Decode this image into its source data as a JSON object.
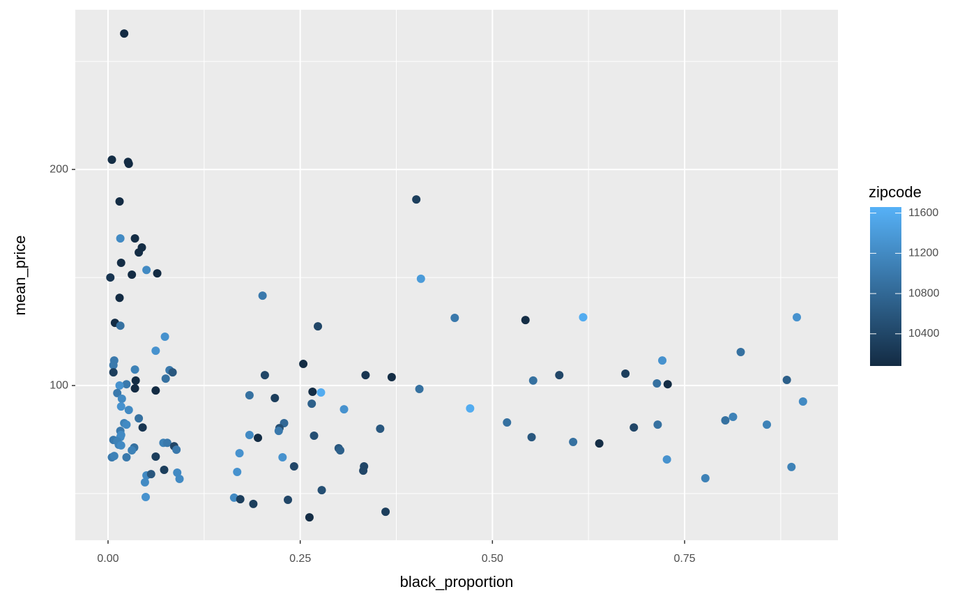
{
  "chart_data": {
    "type": "scatter",
    "x_label": "black_proportion",
    "y_label": "mean_price",
    "xlim": [
      -0.0426,
      0.9495
    ],
    "ylim": [
      28.4,
      273.9
    ],
    "xticks": [
      {
        "value": 0,
        "label": "0.00"
      },
      {
        "value": 0.25,
        "label": "0.25"
      },
      {
        "value": 0.5,
        "label": "0.50"
      },
      {
        "value": 0.75,
        "label": "0.75"
      }
    ],
    "yticks": [
      100,
      200
    ],
    "grid": true,
    "minor_grid": true,
    "color_scale": {
      "title": "zipcode",
      "low": "#132B43",
      "high": "#56B1F7",
      "lim": [
        10080,
        11660
      ],
      "ticks": [
        10400,
        10800,
        11200,
        11600
      ]
    },
    "x": [
      0.021,
      0.005,
      0.026,
      0.027,
      0.015,
      0.016,
      0.035,
      0.044,
      0.04,
      0.017,
      0.05,
      0.031,
      0.064,
      0.003,
      0.015,
      0.009,
      0.016,
      0.074,
      0.062,
      0.008,
      0.007,
      0.035,
      0.007,
      0.08,
      0.084,
      0.075,
      0.036,
      0.024,
      0.015,
      0.035,
      0.062,
      0.012,
      0.018,
      0.017,
      0.027,
      0.04,
      0.021,
      0.024,
      0.045,
      0.016,
      0.017,
      0.016,
      0.007,
      0.012,
      0.014,
      0.017,
      0.072,
      0.077,
      0.086,
      0.034,
      0.031,
      0.089,
      0.005,
      0.008,
      0.024,
      0.062,
      0.073,
      0.09,
      0.05,
      0.056,
      0.093,
      0.048,
      0.049,
      0.201,
      0.204,
      0.184,
      0.217,
      0.229,
      0.223,
      0.222,
      0.184,
      0.195,
      0.171,
      0.227,
      0.242,
      0.168,
      0.164,
      0.172,
      0.189,
      0.234,
      0.262,
      0.254,
      0.273,
      0.266,
      0.277,
      0.265,
      0.307,
      0.268,
      0.3,
      0.302,
      0.278,
      0.335,
      0.369,
      0.354,
      0.333,
      0.332,
      0.361,
      0.401,
      0.407,
      0.405,
      0.451,
      0.471,
      0.519,
      0.543,
      0.553,
      0.551,
      0.587,
      0.605,
      0.618,
      0.639,
      0.673,
      0.684,
      0.714,
      0.721,
      0.728,
      0.715,
      0.727,
      0.777,
      0.803,
      0.813,
      0.823,
      0.857,
      0.883,
      0.889,
      0.896,
      0.904
    ],
    "values": [
      262.9,
      204.5,
      203.5,
      202.6,
      185.2,
      168.1,
      168.1,
      163.9,
      161.6,
      156.8,
      153.5,
      151.3,
      151.9,
      150.0,
      140.6,
      129.0,
      127.7,
      122.6,
      116.1,
      111.6,
      109.4,
      107.4,
      106.1,
      107.1,
      106.1,
      103.2,
      102.3,
      100.6,
      100.0,
      98.7,
      97.7,
      96.5,
      93.9,
      90.3,
      88.7,
      84.8,
      82.6,
      81.9,
      80.6,
      79.0,
      77.1,
      76.1,
      74.8,
      74.2,
      72.6,
      72.3,
      73.5,
      73.5,
      71.9,
      71.3,
      70.0,
      70.3,
      66.8,
      67.4,
      66.8,
      67.1,
      61.0,
      59.7,
      58.4,
      59.0,
      56.8,
      55.2,
      48.4,
      141.6,
      104.8,
      95.5,
      94.2,
      82.6,
      80.3,
      79.0,
      77.1,
      75.8,
      68.7,
      66.8,
      62.6,
      60.0,
      48.1,
      47.4,
      45.2,
      47.1,
      39.0,
      110.0,
      127.4,
      97.1,
      96.8,
      91.6,
      89.0,
      76.8,
      71.0,
      70.0,
      51.6,
      104.8,
      103.9,
      80.0,
      62.6,
      60.6,
      41.6,
      186.1,
      149.4,
      98.4,
      131.3,
      89.4,
      82.9,
      130.3,
      102.3,
      76.1,
      104.8,
      73.9,
      131.6,
      73.2,
      105.5,
      80.6,
      101.0,
      111.6,
      100.6,
      81.9,
      65.8,
      57.1,
      83.9,
      85.5,
      115.5,
      81.9,
      102.6,
      62.3,
      131.6,
      92.6
    ],
    "color_values": [
      10050,
      10100,
      10050,
      10050,
      10050,
      11200,
      10100,
      10100,
      10100,
      10100,
      11200,
      10050,
      10050,
      10200,
      10050,
      10100,
      10900,
      11300,
      11300,
      11000,
      11000,
      11100,
      10300,
      11000,
      10600,
      10900,
      10100,
      11000,
      11300,
      10050,
      10050,
      11000,
      11200,
      11300,
      11200,
      10900,
      11100,
      11200,
      10200,
      11000,
      11200,
      11200,
      11000,
      11100,
      11100,
      11200,
      11100,
      11000,
      10400,
      10900,
      11100,
      11000,
      11000,
      11100,
      11000,
      10300,
      10300,
      11200,
      11200,
      10600,
      11200,
      11200,
      11300,
      11000,
      10400,
      10900,
      10300,
      10800,
      10500,
      11000,
      11200,
      10100,
      11300,
      11300,
      10400,
      11300,
      11200,
      10300,
      10300,
      10400,
      10100,
      10100,
      10400,
      10100,
      11600,
      10700,
      11300,
      10500,
      10600,
      10700,
      10500,
      10200,
      10100,
      10600,
      10400,
      10400,
      10300,
      10300,
      11400,
      10900,
      11000,
      11600,
      10900,
      10100,
      10900,
      10600,
      10400,
      10900,
      11600,
      10100,
      10300,
      10400,
      10900,
      11300,
      10100,
      10900,
      11300,
      11100,
      10900,
      11100,
      10900,
      11100,
      10700,
      11100,
      11300,
      11200
    ]
  }
}
